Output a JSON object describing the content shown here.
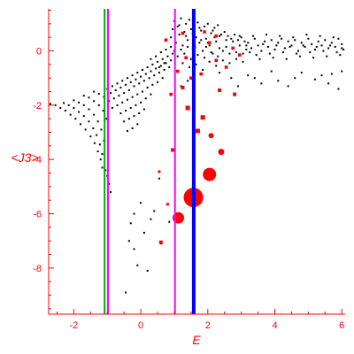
{
  "chart_data": {
    "type": "scatter",
    "title": "",
    "xlabel": "E",
    "ylabel": "<J3>",
    "xlim": [
      -2.75,
      6.1
    ],
    "ylim": [
      -9.7,
      1.55
    ],
    "grid": false,
    "x_ticks": [
      -2,
      0,
      2,
      4,
      6
    ],
    "x_tick_labels": [
      "-2",
      "0",
      "2",
      "4",
      "6"
    ],
    "y_ticks": [
      0,
      -2,
      -4,
      -6,
      -8
    ],
    "y_tick_labels": [
      "0",
      "-2",
      "-4",
      "-6",
      "-8"
    ],
    "colors": {
      "axis": "#ff0000",
      "black_points": "#000000",
      "red_points": "#ff0000",
      "green_line": "#00aa00",
      "magenta_line": "#ff00ff",
      "blue_line": "#0000ff"
    },
    "vertical_lines": [
      {
        "x": -1.08,
        "color": "#00aa00",
        "width": 2
      },
      {
        "x": -0.98,
        "color": "#ff00ff",
        "width": 2
      },
      {
        "x": 1.02,
        "color": "#ff00ff",
        "width": 2
      },
      {
        "x": 1.58,
        "color": "#0000ff",
        "width": 4
      }
    ],
    "black_series": {
      "name": "",
      "arc_points": [
        [
          -2.7,
          -1.95
        ],
        [
          -2.55,
          -2.0
        ],
        [
          -2.4,
          -2.1
        ],
        [
          -2.25,
          -2.2
        ],
        [
          -2.1,
          -2.35
        ],
        [
          -1.95,
          -2.5
        ],
        [
          -1.8,
          -2.7
        ],
        [
          -1.65,
          -2.9
        ],
        [
          -1.5,
          -3.15
        ],
        [
          -1.38,
          -3.4
        ],
        [
          -1.28,
          -3.7
        ],
        [
          -1.2,
          -4.0
        ],
        [
          -1.15,
          -4.3
        ],
        [
          -2.3,
          -1.92
        ],
        [
          -2.15,
          -2.0
        ],
        [
          -2.0,
          -2.1
        ],
        [
          -1.85,
          -2.25
        ],
        [
          -1.7,
          -2.4
        ],
        [
          -1.55,
          -2.6
        ],
        [
          -1.42,
          -2.85
        ],
        [
          -1.32,
          -3.1
        ],
        [
          -1.22,
          -3.45
        ],
        [
          -1.15,
          -3.8
        ],
        [
          -2.0,
          -1.82
        ],
        [
          -1.85,
          -1.9
        ],
        [
          -1.7,
          -2.0
        ],
        [
          -1.55,
          -2.15
        ],
        [
          -1.4,
          -2.35
        ],
        [
          -1.28,
          -2.6
        ],
        [
          -1.18,
          -2.9
        ],
        [
          -1.1,
          -3.3
        ],
        [
          -1.7,
          -1.65
        ],
        [
          -1.55,
          -1.72
        ],
        [
          -1.4,
          -1.85
        ],
        [
          -1.25,
          -2.0
        ],
        [
          -1.12,
          -2.2
        ],
        [
          -1.02,
          -2.5
        ],
        [
          -1.4,
          -1.5
        ],
        [
          -1.25,
          -1.58
        ],
        [
          -1.1,
          -1.7
        ],
        [
          -0.95,
          -1.85
        ],
        [
          -0.85,
          -2.1
        ],
        [
          -1.0,
          -4.6
        ],
        [
          -0.95,
          -4.9
        ],
        [
          -0.9,
          -5.2
        ],
        [
          -1.05,
          -4.4
        ]
      ],
      "band_points": [
        [
          -1.0,
          -1.4
        ],
        [
          -0.85,
          -1.3
        ],
        [
          -0.7,
          -1.2
        ],
        [
          -0.55,
          -1.1
        ],
        [
          -0.4,
          -1.0
        ],
        [
          -0.25,
          -0.9
        ],
        [
          -0.1,
          -0.8
        ],
        [
          0.05,
          -0.7
        ],
        [
          0.2,
          -0.6
        ],
        [
          0.35,
          -0.5
        ],
        [
          0.5,
          -0.4
        ],
        [
          0.65,
          -0.3
        ],
        [
          0.8,
          -0.2
        ],
        [
          0.95,
          -0.1
        ],
        [
          -0.9,
          -1.55
        ],
        [
          -0.75,
          -1.45
        ],
        [
          -0.6,
          -1.35
        ],
        [
          -0.45,
          -1.25
        ],
        [
          -0.3,
          -1.15
        ],
        [
          -0.15,
          -1.05
        ],
        [
          0.0,
          -0.95
        ],
        [
          0.15,
          -0.85
        ],
        [
          0.3,
          -0.75
        ],
        [
          0.45,
          -0.65
        ],
        [
          0.6,
          -0.55
        ],
        [
          0.75,
          -0.45
        ],
        [
          0.9,
          -0.35
        ],
        [
          -0.8,
          -1.75
        ],
        [
          -0.65,
          -1.65
        ],
        [
          -0.5,
          -1.55
        ],
        [
          -0.35,
          -1.45
        ],
        [
          -0.2,
          -1.3
        ],
        [
          -0.05,
          -1.2
        ],
        [
          0.1,
          -1.1
        ],
        [
          0.25,
          -1.0
        ],
        [
          0.4,
          -0.9
        ],
        [
          0.55,
          -0.8
        ],
        [
          0.7,
          -0.7
        ],
        [
          0.85,
          -0.6
        ],
        [
          -0.7,
          -2.0
        ],
        [
          -0.55,
          -1.9
        ],
        [
          -0.4,
          -1.8
        ],
        [
          -0.25,
          -1.7
        ],
        [
          -0.1,
          -1.6
        ],
        [
          0.05,
          -1.5
        ],
        [
          0.2,
          -1.35
        ],
        [
          0.35,
          -1.25
        ],
        [
          0.5,
          -1.15
        ],
        [
          0.65,
          -1.0
        ],
        [
          -0.6,
          -2.3
        ],
        [
          -0.45,
          -2.2
        ],
        [
          -0.3,
          -2.1
        ],
        [
          -0.15,
          -2.0
        ],
        [
          0.0,
          -1.9
        ],
        [
          0.15,
          -1.75
        ],
        [
          0.3,
          -1.6
        ],
        [
          -0.5,
          -2.6
        ],
        [
          -0.35,
          -2.5
        ],
        [
          -0.2,
          -2.4
        ],
        [
          -0.05,
          -2.3
        ],
        [
          0.1,
          -2.15
        ],
        [
          -0.4,
          -2.95
        ],
        [
          -0.25,
          -2.85
        ],
        [
          -0.1,
          -2.7
        ],
        [
          0.3,
          -0.3
        ],
        [
          0.45,
          -0.2
        ],
        [
          0.6,
          -0.05
        ],
        [
          0.75,
          0.05
        ],
        [
          0.9,
          0.15
        ],
        [
          0.55,
          -0.6
        ],
        [
          0.7,
          -0.45
        ]
      ],
      "cluster_points": [
        [
          0.9,
          0.5
        ],
        [
          0.95,
          0.8
        ],
        [
          1.0,
          1.1
        ],
        [
          1.05,
          0.3
        ],
        [
          1.1,
          0.9
        ],
        [
          1.15,
          0.6
        ],
        [
          1.2,
          1.2
        ],
        [
          1.25,
          0.2
        ],
        [
          1.3,
          0.7
        ],
        [
          1.35,
          1.0
        ],
        [
          1.4,
          0.4
        ],
        [
          1.45,
          1.15
        ],
        [
          1.5,
          0.8
        ],
        [
          1.55,
          0.1
        ],
        [
          1.6,
          0.95
        ],
        [
          1.65,
          0.5
        ],
        [
          1.7,
          1.05
        ],
        [
          1.75,
          0.3
        ],
        [
          1.8,
          0.75
        ],
        [
          1.85,
          0.0
        ],
        [
          1.9,
          0.9
        ],
        [
          1.95,
          0.45
        ],
        [
          2.0,
          1.0
        ],
        [
          2.05,
          0.2
        ],
        [
          2.1,
          0.65
        ],
        [
          2.15,
          -0.1
        ],
        [
          2.2,
          0.85
        ],
        [
          2.25,
          0.35
        ],
        [
          2.3,
          0.95
        ],
        [
          2.35,
          0.1
        ],
        [
          1.0,
          0.0
        ],
        [
          1.1,
          -0.2
        ],
        [
          1.2,
          0.05
        ],
        [
          1.3,
          -0.1
        ],
        [
          1.4,
          0.15
        ],
        [
          1.5,
          -0.3
        ],
        [
          1.6,
          0.25
        ],
        [
          1.7,
          -0.15
        ],
        [
          1.8,
          0.4
        ],
        [
          1.9,
          -0.25
        ],
        [
          2.0,
          0.3
        ],
        [
          2.1,
          -0.05
        ],
        [
          2.2,
          0.5
        ],
        [
          2.3,
          -0.2
        ],
        [
          2.4,
          0.6
        ],
        [
          2.45,
          0.0
        ],
        [
          2.5,
          0.7
        ],
        [
          2.55,
          0.15
        ],
        [
          2.6,
          0.55
        ],
        [
          2.65,
          -0.1
        ],
        [
          2.7,
          0.45
        ],
        [
          2.75,
          0.1
        ],
        [
          2.8,
          0.6
        ],
        [
          2.85,
          -0.05
        ],
        [
          2.9,
          0.4
        ],
        [
          2.95,
          0.2
        ],
        [
          3.0,
          0.5
        ],
        [
          3.05,
          -0.1
        ],
        [
          3.1,
          0.35
        ],
        [
          3.15,
          0.05
        ],
        [
          1.25,
          -0.45
        ],
        [
          1.45,
          -0.6
        ],
        [
          1.65,
          -0.5
        ],
        [
          1.85,
          -0.7
        ],
        [
          2.05,
          -0.4
        ],
        [
          2.25,
          -0.55
        ],
        [
          2.45,
          -0.35
        ],
        [
          2.65,
          -0.45
        ],
        [
          2.85,
          -0.3
        ],
        [
          3.05,
          -0.4
        ],
        [
          1.15,
          0.95
        ],
        [
          1.35,
          0.55
        ],
        [
          1.55,
          0.65
        ],
        [
          1.75,
          0.85
        ],
        [
          1.95,
          0.15
        ],
        [
          2.15,
          0.75
        ],
        [
          2.35,
          0.55
        ],
        [
          2.55,
          0.4
        ],
        [
          2.75,
          0.35
        ],
        [
          2.95,
          0.55
        ]
      ],
      "plateau_points": [
        [
          3.2,
          0.3
        ],
        [
          3.3,
          0.1
        ],
        [
          3.4,
          0.45
        ],
        [
          3.5,
          0.2
        ],
        [
          3.6,
          0.0
        ],
        [
          3.7,
          0.35
        ],
        [
          3.8,
          0.15
        ],
        [
          3.9,
          0.4
        ],
        [
          4.0,
          0.05
        ],
        [
          4.1,
          0.3
        ],
        [
          4.2,
          0.45
        ],
        [
          4.3,
          0.1
        ],
        [
          4.4,
          0.35
        ],
        [
          4.5,
          0.2
        ],
        [
          4.6,
          0.4
        ],
        [
          4.7,
          0.0
        ],
        [
          4.8,
          0.3
        ],
        [
          4.9,
          0.15
        ],
        [
          5.0,
          0.45
        ],
        [
          5.1,
          0.25
        ],
        [
          5.2,
          0.05
        ],
        [
          5.3,
          0.35
        ],
        [
          5.4,
          0.2
        ],
        [
          5.5,
          0.4
        ],
        [
          5.6,
          0.1
        ],
        [
          5.7,
          0.3
        ],
        [
          5.8,
          0.15
        ],
        [
          5.9,
          0.45
        ],
        [
          6.0,
          0.25
        ],
        [
          6.05,
          0.05
        ],
        [
          3.25,
          -0.05
        ],
        [
          3.45,
          -0.15
        ],
        [
          3.65,
          0.25
        ],
        [
          3.85,
          -0.1
        ],
        [
          4.05,
          0.2
        ],
        [
          4.25,
          -0.05
        ],
        [
          4.45,
          0.15
        ],
        [
          4.65,
          -0.1
        ],
        [
          4.85,
          0.2
        ],
        [
          5.05,
          -0.05
        ],
        [
          5.25,
          0.15
        ],
        [
          5.45,
          0.0
        ],
        [
          5.65,
          0.2
        ],
        [
          5.85,
          -0.05
        ],
        [
          6.0,
          0.1
        ],
        [
          3.35,
          0.55
        ],
        [
          3.75,
          0.6
        ],
        [
          4.15,
          0.55
        ],
        [
          4.55,
          0.5
        ],
        [
          4.95,
          0.6
        ],
        [
          5.35,
          0.55
        ],
        [
          5.75,
          0.5
        ],
        [
          3.55,
          -0.3
        ],
        [
          3.95,
          -0.25
        ],
        [
          4.35,
          -0.3
        ],
        [
          4.75,
          -0.2
        ],
        [
          5.15,
          -0.25
        ],
        [
          5.55,
          -0.2
        ],
        [
          5.95,
          -0.15
        ],
        [
          3.15,
          0.2
        ]
      ],
      "sparse_points": [
        [
          0.0,
          -5.6
        ],
        [
          -0.2,
          -6.0
        ],
        [
          -0.35,
          -7.0
        ],
        [
          -0.2,
          -7.3
        ],
        [
          -0.1,
          -7.9
        ],
        [
          0.2,
          -8.1
        ],
        [
          0.6,
          -7.1
        ],
        [
          0.4,
          -5.9
        ],
        [
          0.85,
          -6.3
        ],
        [
          -0.45,
          -8.9
        ],
        [
          -0.3,
          -6.35
        ],
        [
          0.1,
          -6.7
        ],
        [
          0.3,
          -6.2
        ],
        [
          0.55,
          -4.7
        ],
        [
          2.7,
          -1.0
        ],
        [
          3.2,
          -0.9
        ],
        [
          3.6,
          -1.2
        ],
        [
          4.1,
          -1.1
        ],
        [
          4.4,
          -1.3
        ],
        [
          3.9,
          -0.75
        ],
        [
          4.8,
          -0.8
        ],
        [
          5.2,
          -1.05
        ],
        [
          5.6,
          -1.2
        ],
        [
          5.9,
          -1.4
        ],
        [
          5.7,
          -0.85
        ],
        [
          3.4,
          -1.0
        ],
        [
          2.9,
          -1.3
        ],
        [
          4.6,
          -1.0
        ],
        [
          5.4,
          -0.9
        ],
        [
          6.0,
          -0.75
        ],
        [
          1.4,
          -1.1
        ],
        [
          1.2,
          -1.3
        ],
        [
          2.35,
          -0.8
        ]
      ]
    },
    "red_series": {
      "name": "",
      "points": [
        {
          "x": 1.57,
          "y": -5.4,
          "size": 11
        },
        {
          "x": 2.05,
          "y": -4.55,
          "size": 7.5
        },
        {
          "x": 1.12,
          "y": -6.15,
          "size": 6.5
        },
        {
          "x": 2.4,
          "y": -3.72,
          "size": 3.5
        },
        {
          "x": 2.1,
          "y": -3.12,
          "size": 3
        },
        {
          "x": 1.7,
          "y": -2.95,
          "size": 2.5
        },
        {
          "x": 1.85,
          "y": -2.45,
          "size": 2.5
        },
        {
          "x": 1.4,
          "y": -2.1,
          "size": 2.5
        },
        {
          "x": 0.6,
          "y": -7.05,
          "size": 2
        },
        {
          "x": 0.95,
          "y": -3.65,
          "size": 2
        },
        {
          "x": 1.25,
          "y": -1.35,
          "size": 2
        },
        {
          "x": 2.35,
          "y": -1.45,
          "size": 2
        },
        {
          "x": 2.8,
          "y": -1.6,
          "size": 2
        },
        {
          "x": 1.5,
          "y": -1.0,
          "size": 1.8
        },
        {
          "x": 1.8,
          "y": -0.85,
          "size": 1.8
        },
        {
          "x": 0.9,
          "y": -1.6,
          "size": 1.8
        },
        {
          "x": 1.1,
          "y": -0.75,
          "size": 1.8
        },
        {
          "x": 2.55,
          "y": -0.6,
          "size": 1.8
        },
        {
          "x": 2.25,
          "y": -0.35,
          "size": 1.8
        },
        {
          "x": 2.05,
          "y": 0.3,
          "size": 1.8
        },
        {
          "x": 2.25,
          "y": 0.55,
          "size": 1.8
        },
        {
          "x": 1.25,
          "y": 0.65,
          "size": 1.8
        },
        {
          "x": 1.9,
          "y": 0.7,
          "size": 1.8
        },
        {
          "x": 2.75,
          "y": 0.1,
          "size": 1.8
        },
        {
          "x": 1.6,
          "y": 0.15,
          "size": 1.8
        },
        {
          "x": 0.75,
          "y": 0.4,
          "size": 1.8
        },
        {
          "x": 2.95,
          "y": -0.15,
          "size": 1.8
        },
        {
          "x": 1.35,
          "y": -0.25,
          "size": 1.8
        },
        {
          "x": 0.55,
          "y": -4.45,
          "size": 1.5
        },
        {
          "x": 0.8,
          "y": -5.65,
          "size": 1.5
        }
      ]
    }
  }
}
